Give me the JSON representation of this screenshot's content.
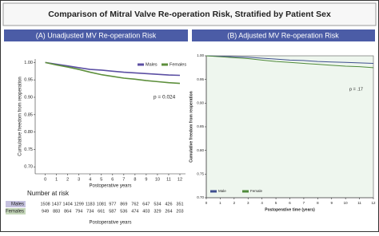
{
  "title": "Comparison of Mitral Valve Re-operation Risk, Stratified by Patient Sex",
  "chart_data": [
    {
      "type": "line",
      "title": "(A) Unadjusted MV Re-operation Risk",
      "xlabel": "Postoperative years",
      "ylabel": "Cumulative freedom from reoperation",
      "xlim": [
        -0.9,
        12.5
      ],
      "ylim": [
        0.68,
        1.01
      ],
      "xticks": [
        0,
        1,
        2,
        3,
        4,
        5,
        6,
        7,
        8,
        9,
        10,
        11,
        12
      ],
      "yticks": [
        {
          "value": 0.7,
          "label": "0.70"
        },
        {
          "value": 0.75,
          "label": "0.75"
        },
        {
          "value": 0.8,
          "label": "0.80"
        },
        {
          "value": 0.85,
          "label": "0.85"
        },
        {
          "value": 0.9,
          "label": "0.90"
        },
        {
          "value": 0.95,
          "label": "0.95"
        },
        {
          "value": 1.0,
          "label": "1.00"
        }
      ],
      "x": [
        0,
        1,
        2,
        3,
        4,
        5,
        6,
        7,
        8,
        9,
        10,
        11,
        12
      ],
      "series": [
        {
          "name": "Males",
          "color": "#5b4fa3",
          "values": [
            1.0,
            0.995,
            0.99,
            0.985,
            0.98,
            0.978,
            0.975,
            0.972,
            0.97,
            0.968,
            0.966,
            0.964,
            0.963
          ]
        },
        {
          "name": "Females",
          "color": "#5d8f3c",
          "values": [
            1.0,
            0.993,
            0.987,
            0.98,
            0.972,
            0.965,
            0.96,
            0.955,
            0.952,
            0.948,
            0.945,
            0.942,
            0.94
          ]
        }
      ],
      "legend": "upper right",
      "annotation": "p = 0.024",
      "risk_table": {
        "title": "Number at risk",
        "xlabel": "Postoperative years",
        "rows": [
          {
            "name": "Males",
            "values": [
              1508,
              1437,
              1404,
              1299,
              1183,
              1081,
              977,
              869,
              762,
              647,
              534,
              426,
              351
            ]
          },
          {
            "name": "Females",
            "values": [
              949,
              883,
              864,
              794,
              734,
              661,
              587,
              536,
              474,
              403,
              329,
              264,
              203
            ]
          }
        ]
      }
    },
    {
      "type": "line",
      "title": "(B) Adjusted MV Re-operation Risk",
      "xlabel": "Postoperative time (years)",
      "ylabel": "Cumulative freedom from reoperation",
      "xlim": [
        0,
        12
      ],
      "ylim": [
        0.7,
        1.0
      ],
      "xticks": [
        0,
        1,
        2,
        3,
        4,
        5,
        6,
        7,
        8,
        9,
        10,
        11,
        12
      ],
      "yticks": [
        {
          "value": 0.7,
          "label": "0.70"
        },
        {
          "value": 0.75,
          "label": "0.75"
        },
        {
          "value": 0.8,
          "label": "0.80"
        },
        {
          "value": 0.85,
          "label": "0.85"
        },
        {
          "value": 0.9,
          "label": "0.90"
        },
        {
          "value": 0.95,
          "label": "0.95"
        },
        {
          "value": 1.0,
          "label": "1.00"
        }
      ],
      "x": [
        0,
        1,
        2,
        3,
        4,
        5,
        6,
        7,
        8,
        9,
        10,
        11,
        12
      ],
      "series": [
        {
          "name": "Male",
          "color": "#3f4f8f",
          "values": [
            1.0,
            0.999,
            0.998,
            0.997,
            0.995,
            0.993,
            0.991,
            0.99,
            0.988,
            0.987,
            0.986,
            0.985,
            0.984
          ]
        },
        {
          "name": "Female",
          "color": "#4f8a3a",
          "values": [
            1.0,
            0.998,
            0.996,
            0.994,
            0.991,
            0.988,
            0.986,
            0.984,
            0.982,
            0.98,
            0.978,
            0.977,
            0.975
          ]
        }
      ],
      "legend": "lower left",
      "annotation": "p = .17"
    }
  ]
}
